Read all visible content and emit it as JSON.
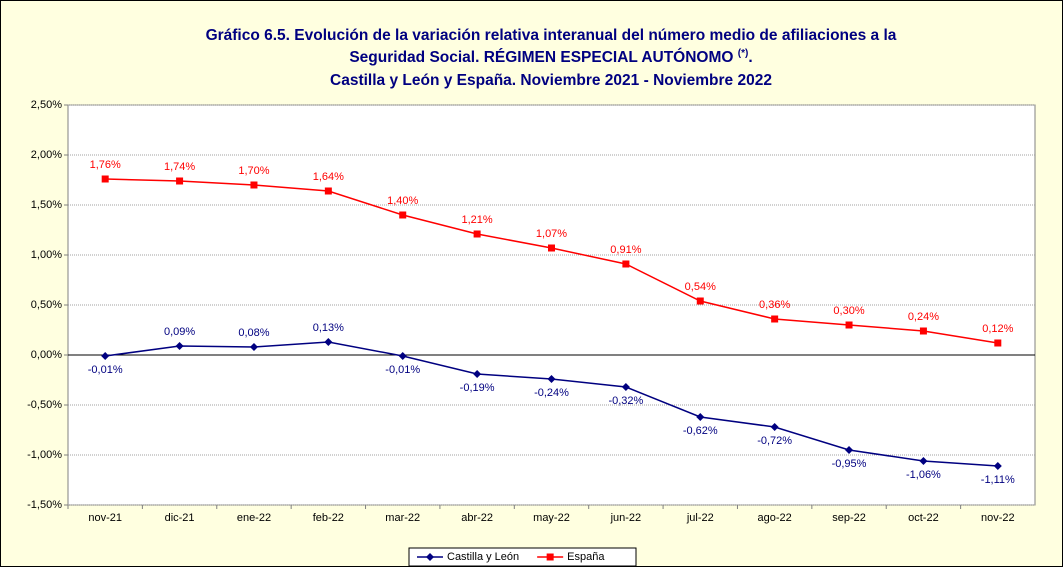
{
  "chart_data": {
    "type": "line",
    "title": [
      "Gráfico 6.5. Evolución de la variación relativa interanual del número medio de  afiliaciones a la",
      [
        "Seguridad Social. RÉGIMEN ESPECIAL AUTÓNOMO ",
        "(*)",
        "."
      ],
      "Castilla y León y España. Noviembre 2021 - Noviembre 2022"
    ],
    "categories": [
      "nov-21",
      "dic-21",
      "ene-22",
      "feb-22",
      "mar-22",
      "abr-22",
      "may-22",
      "jun-22",
      "jul-22",
      "ago-22",
      "sep-22",
      "oct-22",
      "nov-22"
    ],
    "series": [
      {
        "name": "Castilla y León",
        "color": "#000080",
        "marker": "diamond",
        "values": [
          -0.01,
          0.09,
          0.08,
          0.13,
          -0.01,
          -0.19,
          -0.24,
          -0.32,
          -0.62,
          -0.72,
          -0.95,
          -1.06,
          -1.11
        ],
        "value_labels": [
          "-0,01%",
          "0,09%",
          "0,08%",
          "0,13%",
          "-0,01%",
          "-0,19%",
          "-0,24%",
          "-0,32%",
          "-0,62%",
          "-0,72%",
          "-0,95%",
          "-1,06%",
          "-1,11%"
        ]
      },
      {
        "name": "España",
        "color": "#ff0000",
        "marker": "square",
        "values": [
          1.76,
          1.74,
          1.7,
          1.64,
          1.4,
          1.21,
          1.07,
          0.91,
          0.54,
          0.36,
          0.3,
          0.24,
          0.12
        ],
        "value_labels": [
          "1,76%",
          "1,74%",
          "1,70%",
          "1,64%",
          "1,40%",
          "1,21%",
          "1,07%",
          "0,91%",
          "0,54%",
          "0,36%",
          "0,30%",
          "0,24%",
          "0,12%"
        ]
      }
    ],
    "ylim": [
      -1.5,
      2.5
    ],
    "yticks": [
      {
        "value": -1.5,
        "label": "-1,50%"
      },
      {
        "value": -1.0,
        "label": "-1,00%"
      },
      {
        "value": -0.5,
        "label": "-0,50%"
      },
      {
        "value": 0,
        "label": "0,00%"
      },
      {
        "value": 0.5,
        "label": "0,50%"
      },
      {
        "value": 1.0,
        "label": "1,00%"
      },
      {
        "value": 1.5,
        "label": "1,50%"
      },
      {
        "value": 2.0,
        "label": "2,00%"
      },
      {
        "value": 2.5,
        "label": "2,50%"
      }
    ],
    "grid": true,
    "legend": "bottom"
  }
}
